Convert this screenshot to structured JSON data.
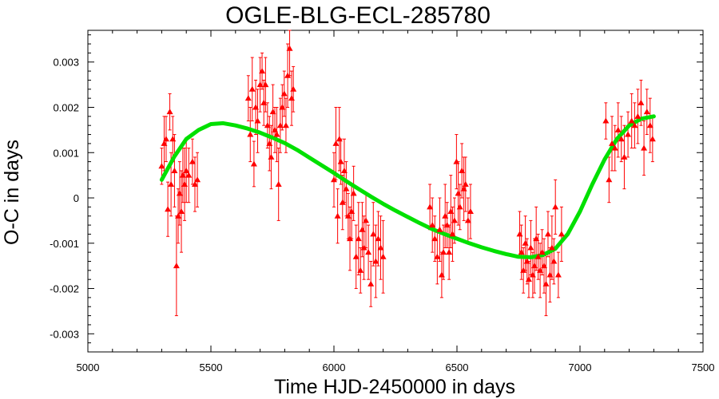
{
  "chart_data": {
    "type": "scatter",
    "title": "OGLE-BLG-ECL-285780",
    "xlabel": "Time HJD-2450000 in days",
    "ylabel": "O-C in days",
    "xlim": [
      5000,
      7500
    ],
    "ylim": [
      -0.0034,
      0.0037
    ],
    "x_ticks": [
      5000,
      5500,
      6000,
      6500,
      7000,
      7500
    ],
    "y_ticks": [
      -0.003,
      -0.002,
      -0.001,
      0,
      0.001,
      0.002,
      0.003
    ],
    "y_tick_labels": [
      "-0.003",
      "-0.002",
      "-0.001",
      "0",
      "0.001",
      "0.002",
      "0.003"
    ],
    "grid": false,
    "colors": {
      "points": "#ff0000",
      "fit": "#00e000"
    },
    "series": [
      {
        "kind": "points-with-error-bars",
        "x": [
          5300,
          5310,
          5318,
          5325,
          5333,
          5338,
          5345,
          5352,
          5360,
          5367,
          5373,
          5380,
          5386,
          5393,
          5400,
          5410,
          5425,
          5435,
          5445,
          5652,
          5660,
          5668,
          5675,
          5682,
          5690,
          5700,
          5708,
          5715,
          5722,
          5730,
          5738,
          5745,
          5752,
          5760,
          5768,
          5775,
          5782,
          5790,
          5798,
          5805,
          5812,
          5820,
          5828,
          5835,
          6000,
          6008,
          6015,
          6022,
          6028,
          6035,
          6042,
          6050,
          6058,
          6065,
          6072,
          6080,
          6090,
          6100,
          6108,
          6115,
          6122,
          6130,
          6140,
          6150,
          6160,
          6170,
          6180,
          6190,
          6200,
          6390,
          6400,
          6410,
          6420,
          6430,
          6438,
          6445,
          6452,
          6460,
          6468,
          6475,
          6482,
          6490,
          6498,
          6505,
          6512,
          6520,
          6528,
          6535,
          6545,
          6555,
          6755,
          6762,
          6770,
          6778,
          6785,
          6792,
          6800,
          6808,
          6815,
          6822,
          6830,
          6838,
          6846,
          6854,
          6862,
          6870,
          6878,
          6886,
          6894,
          6900,
          6912,
          6925,
          7105,
          7118,
          7130,
          7142,
          7155,
          7168,
          7180,
          7195,
          7210,
          7222,
          7235,
          7248,
          7260,
          7272,
          7285,
          7295
        ],
        "y": [
          0.0007,
          0.0012,
          0.0013,
          -0.00025,
          0.0019,
          0.0003,
          0.0013,
          0.0006,
          -0.0015,
          -0.0004,
          0.0001,
          -0.0003,
          0.0005,
          0.0003,
          0.0006,
          0.0005,
          0.0008,
          0.0003,
          0.0004,
          0.0022,
          0.0014,
          0.0024,
          0.00075,
          0.002,
          0.0017,
          0.0025,
          0.0028,
          0.0021,
          0.0025,
          0.0016,
          0.0012,
          0.0009,
          0.0019,
          0.0015,
          0.0014,
          0.0003,
          0.0016,
          0.002,
          0.0023,
          0.0016,
          0.0027,
          0.0033,
          0.0022,
          0.0024,
          0.0004,
          0.0012,
          -0.0004,
          0.0013,
          0.0008,
          -0.0001,
          0.0006,
          0.0002,
          -0.0004,
          -0.0009,
          -0.0003,
          0.0001,
          -0.0013,
          -0.0009,
          -0.0016,
          -0.0007,
          -0.0011,
          -0.0005,
          -0.0012,
          -0.0019,
          -0.0008,
          -0.0014,
          -0.0009,
          -0.0011,
          -0.0013,
          -0.0002,
          -0.0006,
          -0.0009,
          -0.0013,
          -0.0007,
          -0.0017,
          -0.0012,
          -0.0004,
          -0.0006,
          -0.0012,
          -0.0003,
          -0.0008,
          -0.0005,
          0.0008,
          0.0001,
          -0.0002,
          0.0006,
          0.0002,
          0.0003,
          -0.0005,
          -0.0003,
          -0.0008,
          -0.0012,
          -0.0016,
          -0.001,
          -0.0014,
          -0.0018,
          -0.0011,
          -0.0017,
          -0.0015,
          -0.0009,
          -0.0013,
          -0.0016,
          -0.0012,
          -0.0015,
          -0.0019,
          -0.0008,
          -0.0017,
          -0.0011,
          -0.0014,
          -0.0002,
          -0.0017,
          -0.0008,
          0.0017,
          0.0004,
          0.0012,
          0.0011,
          0.0015,
          0.0013,
          0.0009,
          0.0014,
          0.0017,
          0.0016,
          0.0018,
          0.0021,
          0.0011,
          0.0019,
          0.0016,
          0.0013
        ],
        "yerr": [
          0.0004,
          0.0006,
          0.0005,
          0.0006,
          0.0004,
          0.0007,
          0.0005,
          0.0008,
          0.0011,
          0.0006,
          0.0007,
          0.0009,
          0.0006,
          0.0008,
          0.0007,
          0.0006,
          0.0005,
          0.0006,
          0.0006,
          0.0005,
          0.0006,
          0.0007,
          0.0005,
          0.0006,
          0.0007,
          0.0006,
          0.0004,
          0.0005,
          0.0006,
          0.0005,
          0.0006,
          0.0007,
          0.0006,
          0.0005,
          0.0006,
          0.0008,
          0.0006,
          0.0005,
          0.0005,
          0.0006,
          0.0007,
          0.0006,
          0.0006,
          0.0005,
          0.0006,
          0.0008,
          0.0006,
          0.0007,
          0.0005,
          0.0006,
          0.0007,
          0.0006,
          0.0005,
          0.0007,
          0.0006,
          0.0006,
          0.0007,
          0.0008,
          0.0005,
          0.0006,
          0.0007,
          0.0006,
          0.0006,
          0.0005,
          0.0007,
          0.0008,
          0.0006,
          0.0007,
          0.0008,
          0.0005,
          0.0006,
          0.0005,
          0.0006,
          0.0007,
          0.0005,
          0.0006,
          0.0007,
          0.0005,
          0.0006,
          0.0008,
          0.0006,
          0.0005,
          0.0006,
          0.0007,
          0.0005,
          0.0006,
          0.0007,
          0.0006,
          0.0005,
          0.0006,
          0.0005,
          0.0006,
          0.0005,
          0.0006,
          0.0005,
          0.0004,
          0.0006,
          0.0005,
          0.0006,
          0.0007,
          0.0005,
          0.0006,
          0.0005,
          0.0006,
          0.0007,
          0.0005,
          0.0006,
          0.0007,
          0.0005,
          0.0006,
          0.0005,
          0.0006,
          0.0004,
          0.0005,
          0.0006,
          0.0005,
          0.0006,
          0.0005,
          0.0007,
          0.0005,
          0.0006,
          0.0005,
          0.0006,
          0.0005,
          0.0006,
          0.0005,
          0.0006,
          0.0005
        ]
      },
      {
        "kind": "fit-curve",
        "x": [
          5300,
          5350,
          5400,
          5450,
          5500,
          5550,
          5600,
          5650,
          5700,
          5750,
          5800,
          5850,
          5900,
          5950,
          6000,
          6050,
          6100,
          6150,
          6200,
          6250,
          6300,
          6350,
          6400,
          6450,
          6500,
          6550,
          6600,
          6650,
          6700,
          6750,
          6800,
          6850,
          6900,
          6950,
          7000,
          7050,
          7100,
          7150,
          7200,
          7250,
          7300
        ],
        "y": [
          0.0004,
          0.0009,
          0.0013,
          0.0015,
          0.00163,
          0.00165,
          0.0016,
          0.00153,
          0.00144,
          0.00133,
          0.00121,
          0.00106,
          0.00089,
          0.00072,
          0.00055,
          0.00037,
          0.0002,
          3e-05,
          -0.00013,
          -0.00028,
          -0.00042,
          -0.00056,
          -0.00069,
          -0.0008,
          -0.0009,
          -0.001,
          -0.00109,
          -0.00117,
          -0.00124,
          -0.0013,
          -0.00131,
          -0.00126,
          -0.00112,
          -0.0008,
          -0.0003,
          0.0003,
          0.00085,
          0.0013,
          0.0016,
          0.00175,
          0.0018
        ]
      }
    ]
  }
}
